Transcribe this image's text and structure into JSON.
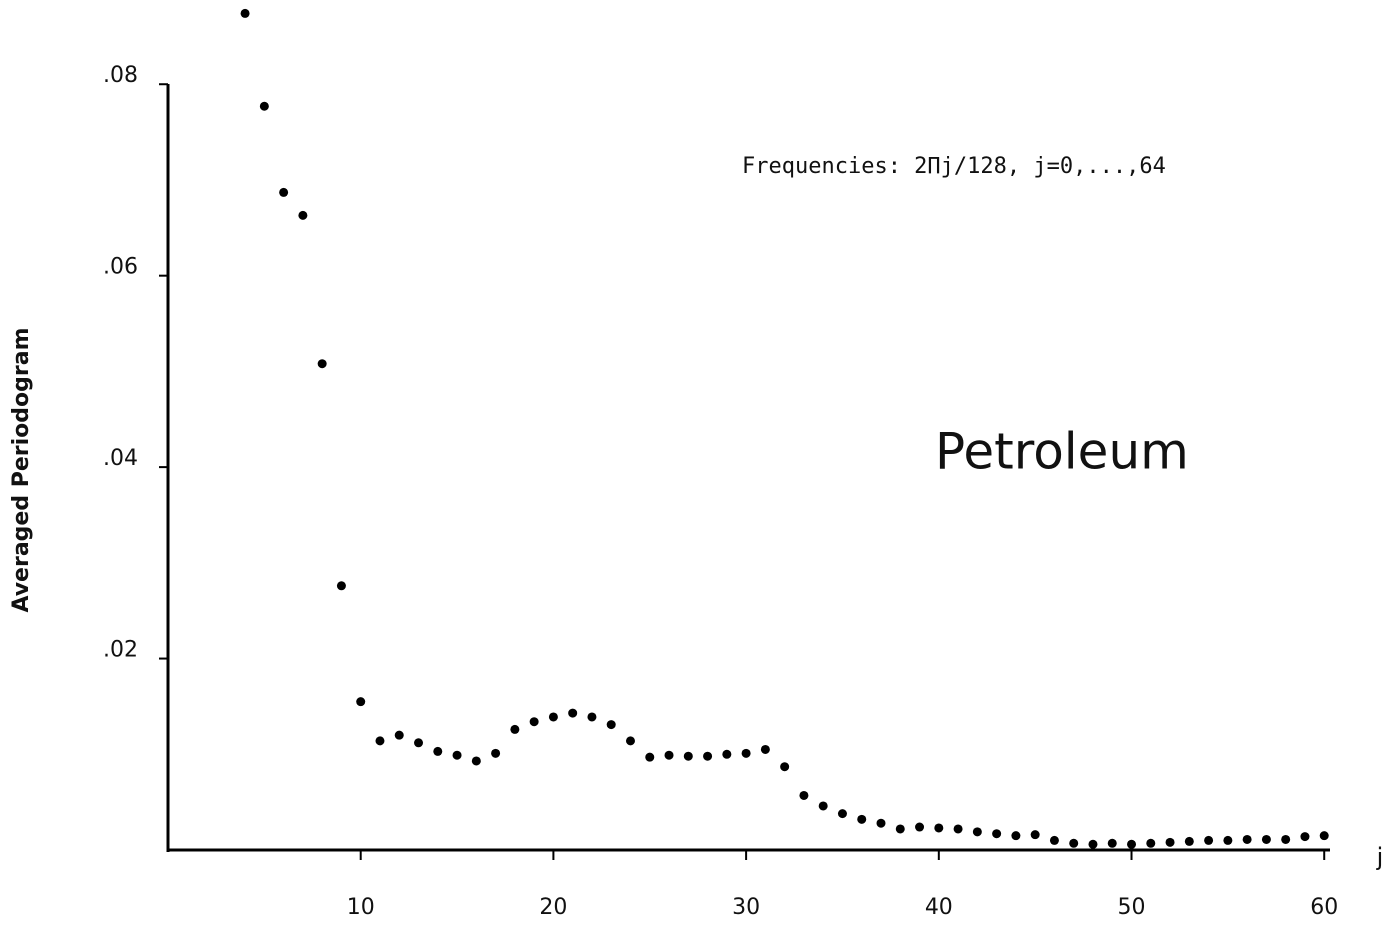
{
  "chart_data": {
    "type": "scatter",
    "y_label": "Averaged Periodogram",
    "x_label": "j",
    "annotations": [
      "Frequencies:  2Πj/128,  j=0,...,64",
      "Petroleum"
    ],
    "color": "#000000",
    "x": [
      4,
      5,
      6,
      7,
      8,
      9,
      10,
      11,
      12,
      13,
      14,
      15,
      16,
      17,
      18,
      19,
      20,
      21,
      22,
      23,
      24,
      25,
      26,
      27,
      28,
      29,
      30,
      31,
      32,
      33,
      34,
      35,
      36,
      37,
      38,
      39,
      40,
      41,
      42,
      43,
      44,
      45,
      46,
      47,
      48,
      49,
      50,
      51,
      52,
      53,
      54,
      55,
      56,
      57,
      58,
      59,
      60
    ],
    "values": [
      0.0874,
      0.0777,
      0.0687,
      0.0663,
      0.0508,
      0.0276,
      0.0155,
      0.0114,
      0.012,
      0.0112,
      0.0103,
      0.0099,
      0.0093,
      0.0101,
      0.0126,
      0.0134,
      0.0139,
      0.0143,
      0.0139,
      0.0131,
      0.0114,
      0.0097,
      0.0099,
      0.0098,
      0.0098,
      0.01,
      0.0101,
      0.0105,
      0.0087,
      0.0057,
      0.0046,
      0.0038,
      0.0032,
      0.0028,
      0.0022,
      0.0024,
      0.0023,
      0.0022,
      0.0019,
      0.0017,
      0.0015,
      0.0016,
      0.001,
      0.0007,
      0.0006,
      0.0007,
      0.0006,
      0.0007,
      0.0008,
      0.0009,
      0.001,
      0.001,
      0.0011,
      0.0011,
      0.0011,
      0.0014,
      0.0015
    ],
    "xlim": [
      0,
      60.3
    ],
    "ylim": [
      0,
      0.0888
    ],
    "xticks": [
      10,
      20,
      30,
      40,
      50,
      60
    ],
    "yticks": [
      {
        "value": 0.02,
        "label": ".02"
      },
      {
        "value": 0.04,
        "label": ".04"
      },
      {
        "value": 0.06,
        "label": ".06"
      },
      {
        "value": 0.08,
        "label": ".08"
      }
    ]
  }
}
